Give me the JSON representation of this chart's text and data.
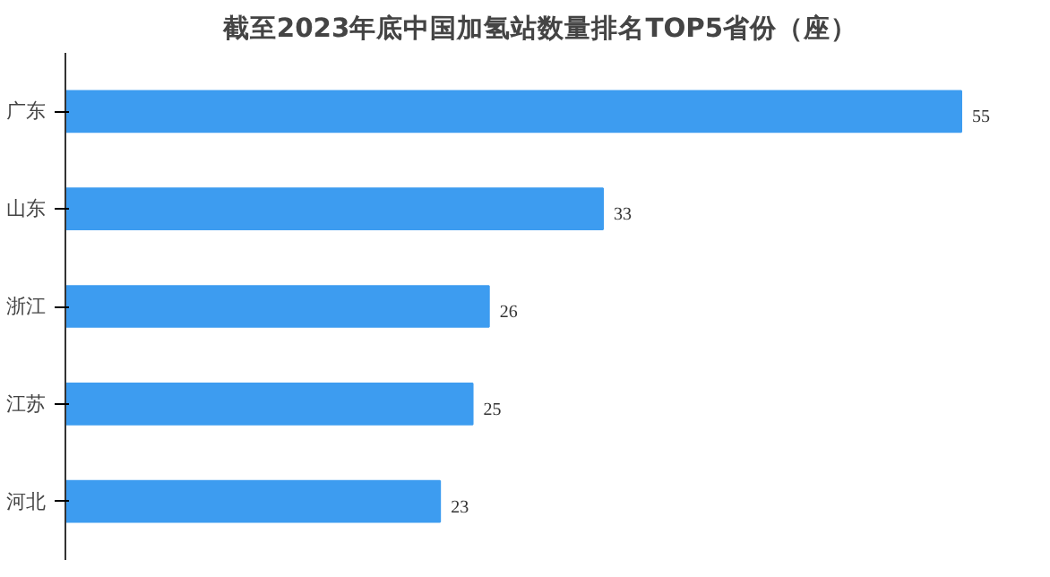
{
  "chart_data": {
    "type": "bar",
    "orientation": "horizontal",
    "title": "截至2023年底中国加氢站数量排名TOP5省份（座）",
    "categories": [
      "广东",
      "山东",
      "浙江",
      "江苏",
      "河北"
    ],
    "values": [
      55,
      33,
      26,
      25,
      23
    ],
    "color": "#3d9cf0",
    "data_labels": true,
    "grid": false
  }
}
